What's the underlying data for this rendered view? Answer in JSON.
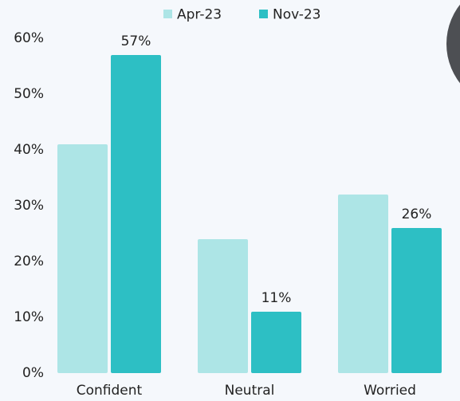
{
  "chart_data": {
    "type": "bar",
    "categories": [
      "Confident",
      "Neutral",
      "Worried"
    ],
    "series": [
      {
        "name": "Apr-23",
        "color": "#ade5e6",
        "values": [
          41,
          24,
          32
        ]
      },
      {
        "name": "Nov-23",
        "color": "#2dbfc4",
        "values": [
          57,
          11,
          26
        ],
        "value_labels": [
          "57%",
          "11%",
          "26%"
        ]
      }
    ],
    "ylim": [
      0,
      60
    ],
    "yticks": [
      {
        "value": 0,
        "label": "0%"
      },
      {
        "value": 10,
        "label": "10%"
      },
      {
        "value": 20,
        "label": "20%"
      },
      {
        "value": 30,
        "label": "30%"
      },
      {
        "value": 40,
        "label": "40%"
      },
      {
        "value": 50,
        "label": "50%"
      },
      {
        "value": 60,
        "label": "60%"
      }
    ],
    "legend": "top"
  }
}
